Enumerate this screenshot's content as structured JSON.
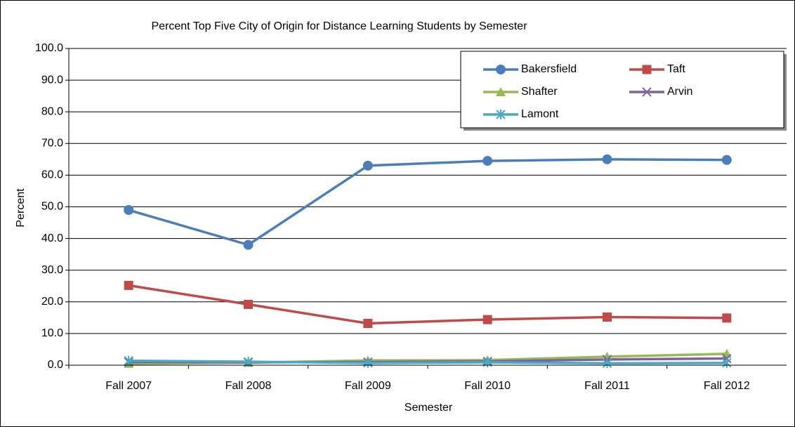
{
  "chart_data": {
    "type": "line",
    "title": "Percent Top Five City of Origin for Distance Learning Students by Semester",
    "x_label": "Semester",
    "y_label": "Percent",
    "categories": [
      "Fall  2007",
      "Fall 2008",
      "Fall 2009",
      "Fall 2010",
      "Fall 2011",
      "Fall 2012"
    ],
    "series": [
      {
        "name": "Bakersfield",
        "color": "#4a7ebb",
        "marker": "circle",
        "values": [
          49.0,
          38.0,
          63.0,
          64.5,
          65.0,
          64.8
        ]
      },
      {
        "name": "Taft",
        "color": "#be4b48",
        "marker": "square",
        "values": [
          25.2,
          19.2,
          13.2,
          14.4,
          15.2,
          14.9
        ]
      },
      {
        "name": "Shafter",
        "color": "#98b954",
        "marker": "triangle",
        "values": [
          0.5,
          0.8,
          1.5,
          1.6,
          2.7,
          3.6
        ]
      },
      {
        "name": "Arvin",
        "color": "#7d60a0",
        "marker": "x",
        "values": [
          1.0,
          0.9,
          1.0,
          1.2,
          1.8,
          2.1
        ]
      },
      {
        "name": "Lamont",
        "color": "#46aac5",
        "marker": "asterisk",
        "values": [
          1.4,
          1.1,
          0.7,
          0.9,
          0.6,
          0.7
        ]
      }
    ],
    "ylim": [
      0,
      100
    ],
    "yticks": [
      {
        "value": 0,
        "label": "0.0"
      },
      {
        "value": 10,
        "label": "10.0"
      },
      {
        "value": 20,
        "label": "20.0"
      },
      {
        "value": 30,
        "label": "30.0"
      },
      {
        "value": 40,
        "label": "40.0"
      },
      {
        "value": 50,
        "label": "50.0"
      },
      {
        "value": 60,
        "label": "60.0"
      },
      {
        "value": 70,
        "label": "70.0"
      },
      {
        "value": 80,
        "label": "80.0"
      },
      {
        "value": 90,
        "label": "90.0"
      },
      {
        "value": 100,
        "label": "100.0"
      }
    ],
    "grid": true,
    "legend": "upper right"
  }
}
